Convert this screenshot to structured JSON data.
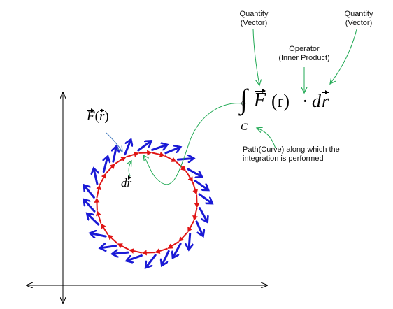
{
  "labels": {
    "quantity_left": [
      "Quantity",
      "(Vector)"
    ],
    "quantity_right": [
      "Quantity",
      "(Vector)"
    ],
    "operator": [
      "Operator",
      "(Inner Product)"
    ],
    "path": [
      "Path(Curve) along which the",
      "integration is performed"
    ]
  },
  "math": {
    "integral_sign": "∫",
    "oint_circle": "○",
    "F": "F",
    "arg": "(r)",
    "dot": "·",
    "d": "d",
    "r": "r",
    "contour": "C",
    "F_of_r_F": "F",
    "F_of_r_arg_open": "(",
    "F_of_r_arg_r": "r",
    "F_of_r_arg_close": ")",
    "dr_d": "d",
    "dr_r": "r"
  },
  "colors": {
    "field_vector": "#1a1ad6",
    "displacement_vector": "#e01515",
    "callout_line": "#22aa55",
    "callout_line_blue": "#4a7fc0",
    "axis": "#000000"
  }
}
